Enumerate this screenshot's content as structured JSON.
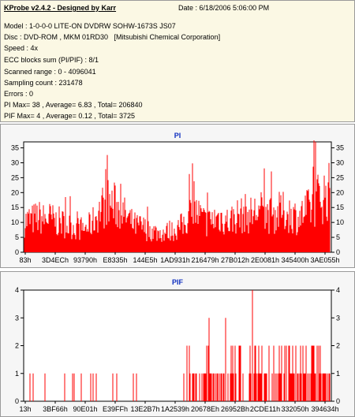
{
  "info": {
    "title": "KProbe v2.4.2 - Designed by Karr",
    "date": "Date : 6/18/2006 5:06:00 PM",
    "model": "Model : 1-0-0-0 LITE-ON DVDRW SOHW-1673S JS07",
    "disc": "Disc : DVD-ROM , MKM 01RD30   [Mitsubishi Chemical Corporation]",
    "speed": "Speed : 4x",
    "ecc": "ECC blocks sum (PI/PIF) : 8/1",
    "range": "Scanned range : 0 - 4096041",
    "sampling": "Sampling count : 231478",
    "errors": "Errors : 0",
    "pi_stats": "PI Max= 38 , Average= 6.83 , Total= 206840",
    "pif_stats": "PIF Max= 4 , Average= 0.12 , Total= 3725"
  },
  "chart_data": [
    {
      "type": "bar",
      "title": "PI",
      "ylim": [
        0,
        37
      ],
      "yticks": [
        0,
        5,
        10,
        15,
        20,
        25,
        30,
        35
      ],
      "xticks": [
        "83h",
        "3D4ECh",
        "93790h",
        "E8335h",
        "144E5h",
        "1AD931h",
        "216479h",
        "27B012h",
        "2E0081h",
        "345400h",
        "3AE055h"
      ],
      "max": 38,
      "profile": [
        14,
        15,
        15,
        16,
        16,
        15,
        16,
        15,
        14,
        14,
        13,
        12,
        12,
        11,
        11,
        11,
        12,
        14,
        17,
        20,
        22,
        23,
        22,
        21,
        19,
        17,
        15,
        13,
        12,
        12,
        11,
        10,
        10,
        9,
        9,
        9,
        10,
        10,
        11,
        12,
        14,
        17,
        19,
        18,
        16,
        14,
        14,
        15,
        16,
        16,
        15,
        14,
        16,
        17,
        17,
        18,
        17,
        18,
        19,
        19,
        18,
        17,
        17,
        18,
        19,
        18,
        18,
        17,
        16,
        17,
        19,
        20,
        22,
        25,
        26,
        27,
        28
      ]
    },
    {
      "type": "bar",
      "title": "PIF",
      "ylim": [
        0,
        4
      ],
      "yticks": [
        0,
        1,
        2,
        3,
        4
      ],
      "xticks": [
        "13h",
        "3BF66h",
        "90E01h",
        "E39FFh",
        "13E2B7h",
        "1A2539h",
        "20678Eh",
        "26952Bh",
        "2CDE11h",
        "332050h",
        "394634h"
      ],
      "max": 4
    }
  ],
  "colors": {
    "bars": "#ff0000",
    "axis": "#000000",
    "title": "#1030c0"
  }
}
